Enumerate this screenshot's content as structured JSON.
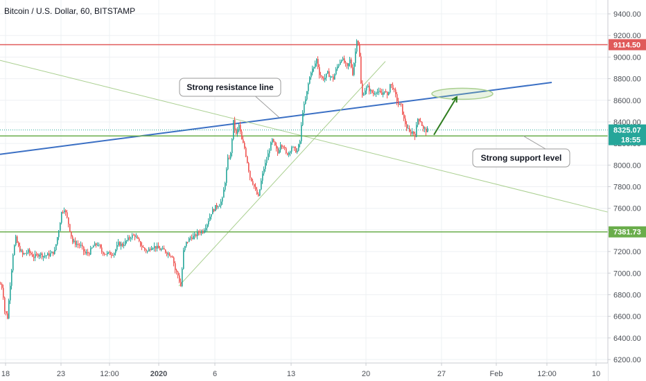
{
  "header": {
    "symbol_title": "Bitcoin / U.S. Dollar, 60, BITSTAMP"
  },
  "colors": {
    "background": "#ffffff",
    "grid": "#eef0f3",
    "candle_up": "#26a69a",
    "candle_down": "#ef5350",
    "resistance_horizontal": "#e05a5a",
    "support_horizontal": "#6aad4b",
    "trend_line_blue": "#3a6fc4",
    "thin_trend": "#a9cf8f",
    "arrow": "#2e7d1f",
    "label_red_bg": "#e05a5a",
    "label_green_bg": "#6aad4b",
    "label_teal_bg": "#26a69a",
    "axis_text": "#4b4f56"
  },
  "chart_data": {
    "type": "candlestick",
    "title": "Bitcoin / U.S. Dollar, 60, BITSTAMP",
    "x_tick_labels": [
      "18",
      "23",
      "12:00",
      "2020",
      "6",
      "13",
      "20",
      "27",
      "Feb",
      "12:00",
      "10"
    ],
    "y_tick_labels": [
      "6200.00",
      "6400.00",
      "6600.00",
      "6800.00",
      "7000.00",
      "7200.00",
      "7400.00",
      "7600.00",
      "7800.00",
      "8000.00",
      "8200.00",
      "8400.00",
      "8600.00",
      "8800.00",
      "9000.00",
      "9200.00",
      "9400.00"
    ],
    "ylim": [
      6150,
      9550
    ],
    "grid": true,
    "price_path": [
      [
        0,
        6900
      ],
      [
        3,
        6860
      ],
      [
        6,
        6650
      ],
      [
        10,
        6590
      ],
      [
        14,
        6900
      ],
      [
        18,
        7180
      ],
      [
        22,
        7320
      ],
      [
        26,
        7240
      ],
      [
        32,
        7170
      ],
      [
        40,
        7200
      ],
      [
        48,
        7150
      ],
      [
        56,
        7180
      ],
      [
        62,
        7160
      ],
      [
        70,
        7170
      ],
      [
        78,
        7200
      ],
      [
        84,
        7400
      ],
      [
        88,
        7560
      ],
      [
        92,
        7600
      ],
      [
        98,
        7460
      ],
      [
        104,
        7290
      ],
      [
        110,
        7270
      ],
      [
        116,
        7250
      ],
      [
        122,
        7180
      ],
      [
        128,
        7190
      ],
      [
        134,
        7250
      ],
      [
        140,
        7270
      ],
      [
        146,
        7200
      ],
      [
        152,
        7180
      ],
      [
        158,
        7180
      ],
      [
        164,
        7190
      ],
      [
        170,
        7270
      ],
      [
        176,
        7260
      ],
      [
        182,
        7300
      ],
      [
        188,
        7340
      ],
      [
        194,
        7350
      ],
      [
        200,
        7280
      ],
      [
        206,
        7230
      ],
      [
        212,
        7200
      ],
      [
        218,
        7250
      ],
      [
        224,
        7240
      ],
      [
        230,
        7220
      ],
      [
        236,
        7210
      ],
      [
        242,
        7180
      ],
      [
        248,
        7160
      ],
      [
        252,
        7030
      ],
      [
        256,
        6980
      ],
      [
        260,
        6880
      ],
      [
        264,
        7200
      ],
      [
        268,
        7280
      ],
      [
        274,
        7330
      ],
      [
        280,
        7340
      ],
      [
        286,
        7380
      ],
      [
        292,
        7390
      ],
      [
        298,
        7460
      ],
      [
        304,
        7560
      ],
      [
        310,
        7610
      ],
      [
        316,
        7640
      ],
      [
        320,
        7680
      ],
      [
        324,
        7850
      ],
      [
        328,
        8050
      ],
      [
        332,
        8100
      ],
      [
        336,
        8400
      ],
      [
        340,
        8280
      ],
      [
        344,
        8370
      ],
      [
        348,
        8230
      ],
      [
        352,
        8160
      ],
      [
        356,
        8030
      ],
      [
        360,
        7890
      ],
      [
        364,
        7840
      ],
      [
        368,
        7760
      ],
      [
        372,
        7700
      ],
      [
        376,
        7850
      ],
      [
        380,
        7970
      ],
      [
        384,
        8050
      ],
      [
        388,
        8150
      ],
      [
        392,
        8230
      ],
      [
        396,
        8170
      ],
      [
        400,
        8110
      ],
      [
        404,
        8200
      ],
      [
        408,
        8180
      ],
      [
        412,
        8100
      ],
      [
        416,
        8120
      ],
      [
        420,
        8170
      ],
      [
        424,
        8140
      ],
      [
        428,
        8130
      ],
      [
        432,
        8220
      ],
      [
        436,
        8500
      ],
      [
        440,
        8600
      ],
      [
        444,
        8750
      ],
      [
        448,
        8870
      ],
      [
        452,
        8900
      ],
      [
        456,
        8980
      ],
      [
        460,
        8850
      ],
      [
        464,
        8800
      ],
      [
        468,
        8810
      ],
      [
        472,
        8850
      ],
      [
        476,
        8820
      ],
      [
        480,
        8800
      ],
      [
        484,
        8880
      ],
      [
        488,
        8940
      ],
      [
        492,
        8990
      ],
      [
        496,
        8950
      ],
      [
        500,
        8900
      ],
      [
        504,
        8970
      ],
      [
        508,
        8850
      ],
      [
        512,
        9050
      ],
      [
        514,
        9170
      ],
      [
        516,
        9130
      ],
      [
        518,
        9000
      ],
      [
        520,
        8750
      ],
      [
        522,
        8640
      ],
      [
        526,
        8700
      ],
      [
        530,
        8720
      ],
      [
        534,
        8680
      ],
      [
        538,
        8660
      ],
      [
        542,
        8690
      ],
      [
        546,
        8670
      ],
      [
        550,
        8650
      ],
      [
        554,
        8700
      ],
      [
        558,
        8630
      ],
      [
        562,
        8750
      ],
      [
        566,
        8720
      ],
      [
        570,
        8640
      ],
      [
        574,
        8560
      ],
      [
        578,
        8550
      ],
      [
        582,
        8420
      ],
      [
        586,
        8350
      ],
      [
        590,
        8300
      ],
      [
        594,
        8310
      ],
      [
        598,
        8280
      ],
      [
        602,
        8430
      ],
      [
        606,
        8410
      ],
      [
        610,
        8330
      ],
      [
        614,
        8320
      ],
      [
        616,
        8325
      ]
    ],
    "horizontal_levels": [
      {
        "price": 9114.5,
        "label": "9114.50",
        "color": "#e05a5a"
      },
      {
        "price": 8270.14,
        "label": "8270.14",
        "color": "#6aad4b"
      },
      {
        "price": 7381.73,
        "label": "7381.73",
        "color": "#6aad4b"
      }
    ],
    "current_price": {
      "price": 8325.07,
      "label": "8325.07",
      "countdown": "18:55"
    },
    "trend_lines": [
      {
        "from": [
          0,
          8100
        ],
        "to": [
          796,
          8765
        ],
        "color": "#3a6fc4"
      },
      {
        "from": [
          0,
          8970
        ],
        "to": [
          880,
          7560
        ],
        "color": "#a9cf8f"
      },
      {
        "from": [
          258,
          6880
        ],
        "to": [
          556,
          8960
        ],
        "color": "#a9cf8f"
      },
      {
        "from": [
          0,
          6150
        ],
        "to": [
          62,
          6080
        ],
        "color": "#a9cf8f"
      }
    ],
    "annotations": [
      {
        "text": "Strong resistance line",
        "anchor": [
          403,
          8440
        ]
      },
      {
        "text": "Strong support level",
        "anchor": [
          755,
          8270
        ]
      }
    ],
    "projection_arrow": {
      "from": [
        626,
        8280
      ],
      "to": [
        659,
        8630
      ]
    },
    "highlight_ellipse": {
      "center": [
        667,
        8660
      ],
      "note": "target zone on blue trend line"
    }
  }
}
